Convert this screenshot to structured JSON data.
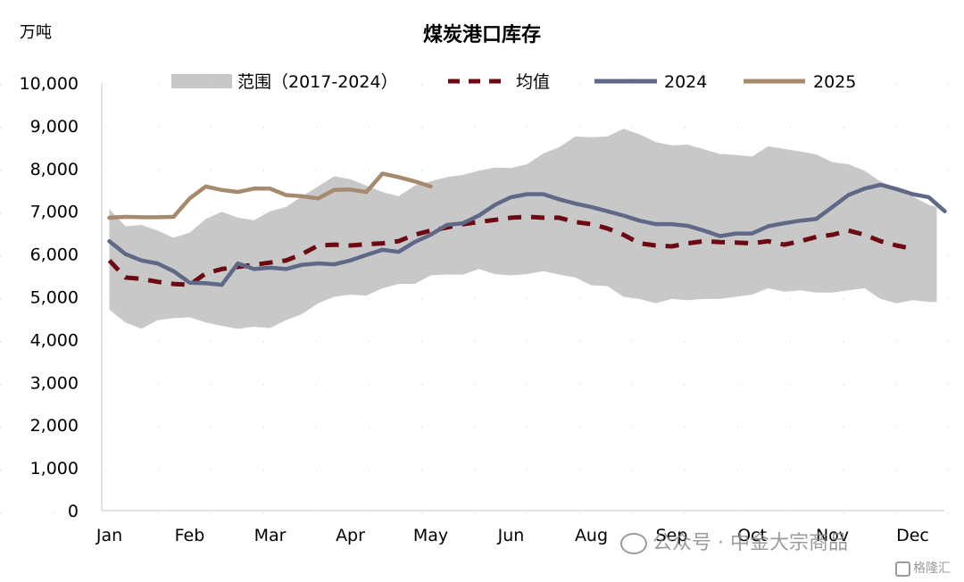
{
  "chart_data": {
    "type": "line",
    "title": "煤炭港口库存",
    "unit_label": "万吨",
    "ylim": [
      0,
      10000
    ],
    "yticks": [
      0,
      1000,
      2000,
      3000,
      4000,
      5000,
      6000,
      7000,
      8000,
      9000,
      10000
    ],
    "ytick_labels": [
      "0",
      "1,000",
      "2,000",
      "3,000",
      "4,000",
      "5,000",
      "6,000",
      "7,000",
      "8,000",
      "9,000",
      "10,000"
    ],
    "xlim": [
      1,
      52.5
    ],
    "month_labels": [
      "Jan",
      "Feb",
      "Mar",
      "Apr",
      "May",
      "Jun",
      "Aug",
      "Sep",
      "Oct",
      "Nov",
      "Dec"
    ],
    "month_positions": [
      1,
      6,
      11,
      16,
      21,
      26,
      31,
      36,
      41,
      46,
      51
    ],
    "legend": {
      "position": "top",
      "entries": [
        {
          "label": "范围（2017-2024）",
          "key": "range"
        },
        {
          "label": "均值",
          "key": "mean"
        },
        {
          "label": "2024",
          "key": "s2024"
        },
        {
          "label": "2025",
          "key": "s2025"
        }
      ]
    },
    "colors": {
      "range": "#c8c8c8",
      "mean": "#6b0a12",
      "s2024": "#5f6886",
      "s2025": "#a58a6e"
    },
    "range_upper": [
      [
        1,
        7050
      ],
      [
        2,
        6650
      ],
      [
        3,
        6680
      ],
      [
        4,
        6550
      ],
      [
        5,
        6380
      ],
      [
        6,
        6500
      ],
      [
        7,
        6820
      ],
      [
        8,
        6990
      ],
      [
        9,
        6850
      ],
      [
        10,
        6790
      ],
      [
        11,
        7000
      ],
      [
        12,
        7100
      ],
      [
        13,
        7350
      ],
      [
        14,
        7580
      ],
      [
        15,
        7820
      ],
      [
        16,
        7750
      ],
      [
        17,
        7600
      ],
      [
        18,
        7450
      ],
      [
        19,
        7350
      ],
      [
        20,
        7600
      ],
      [
        21,
        7700
      ],
      [
        22,
        7800
      ],
      [
        23,
        7850
      ],
      [
        24,
        7950
      ],
      [
        25,
        8020
      ],
      [
        26,
        8010
      ],
      [
        27,
        8100
      ],
      [
        28,
        8350
      ],
      [
        29,
        8500
      ],
      [
        30,
        8750
      ],
      [
        31,
        8730
      ],
      [
        32,
        8750
      ],
      [
        33,
        8930
      ],
      [
        34,
        8800
      ],
      [
        35,
        8620
      ],
      [
        36,
        8540
      ],
      [
        37,
        8560
      ],
      [
        38,
        8450
      ],
      [
        39,
        8340
      ],
      [
        40,
        8320
      ],
      [
        41,
        8280
      ],
      [
        42,
        8520
      ],
      [
        43,
        8460
      ],
      [
        44,
        8400
      ],
      [
        45,
        8330
      ],
      [
        46,
        8150
      ],
      [
        47,
        8100
      ],
      [
        48,
        7950
      ],
      [
        49,
        7700
      ],
      [
        50,
        7550
      ],
      [
        51,
        7350
      ],
      [
        52,
        7150
      ],
      [
        52.5,
        7100
      ]
    ],
    "range_lower": [
      [
        1,
        4700
      ],
      [
        2,
        4400
      ],
      [
        3,
        4250
      ],
      [
        4,
        4450
      ],
      [
        5,
        4500
      ],
      [
        6,
        4520
      ],
      [
        7,
        4400
      ],
      [
        8,
        4320
      ],
      [
        9,
        4250
      ],
      [
        10,
        4300
      ],
      [
        11,
        4270
      ],
      [
        12,
        4450
      ],
      [
        13,
        4600
      ],
      [
        14,
        4850
      ],
      [
        15,
        5000
      ],
      [
        16,
        5050
      ],
      [
        17,
        5030
      ],
      [
        18,
        5200
      ],
      [
        19,
        5300
      ],
      [
        20,
        5300
      ],
      [
        21,
        5500
      ],
      [
        22,
        5520
      ],
      [
        23,
        5520
      ],
      [
        24,
        5650
      ],
      [
        25,
        5530
      ],
      [
        26,
        5500
      ],
      [
        27,
        5530
      ],
      [
        28,
        5600
      ],
      [
        29,
        5520
      ],
      [
        30,
        5450
      ],
      [
        31,
        5270
      ],
      [
        32,
        5250
      ],
      [
        33,
        5000
      ],
      [
        34,
        4950
      ],
      [
        35,
        4850
      ],
      [
        36,
        4950
      ],
      [
        37,
        4920
      ],
      [
        38,
        4950
      ],
      [
        39,
        4950
      ],
      [
        40,
        5000
      ],
      [
        41,
        5050
      ],
      [
        42,
        5200
      ],
      [
        43,
        5120
      ],
      [
        44,
        5150
      ],
      [
        45,
        5100
      ],
      [
        46,
        5100
      ],
      [
        47,
        5150
      ],
      [
        48,
        5200
      ],
      [
        49,
        4950
      ],
      [
        50,
        4850
      ],
      [
        51,
        4920
      ],
      [
        52,
        4880
      ],
      [
        52.5,
        4880
      ]
    ],
    "series": [
      {
        "name": "均值",
        "key": "mean",
        "style": "dashed",
        "points": [
          [
            1,
            5850
          ],
          [
            2,
            5450
          ],
          [
            3,
            5420
          ],
          [
            4,
            5350
          ],
          [
            5,
            5300
          ],
          [
            6,
            5280
          ],
          [
            7,
            5550
          ],
          [
            8,
            5650
          ],
          [
            9,
            5700
          ],
          [
            10,
            5750
          ],
          [
            11,
            5800
          ],
          [
            12,
            5850
          ],
          [
            13,
            6000
          ],
          [
            14,
            6200
          ],
          [
            15,
            6220
          ],
          [
            16,
            6200
          ],
          [
            17,
            6230
          ],
          [
            18,
            6250
          ],
          [
            19,
            6300
          ],
          [
            20,
            6450
          ],
          [
            21,
            6550
          ],
          [
            22,
            6620
          ],
          [
            23,
            6700
          ],
          [
            24,
            6750
          ],
          [
            25,
            6800
          ],
          [
            26,
            6850
          ],
          [
            27,
            6870
          ],
          [
            28,
            6850
          ],
          [
            29,
            6850
          ],
          [
            30,
            6750
          ],
          [
            31,
            6700
          ],
          [
            32,
            6600
          ],
          [
            33,
            6450
          ],
          [
            34,
            6250
          ],
          [
            35,
            6200
          ],
          [
            36,
            6180
          ],
          [
            37,
            6250
          ],
          [
            38,
            6300
          ],
          [
            39,
            6280
          ],
          [
            40,
            6270
          ],
          [
            41,
            6250
          ],
          [
            42,
            6300
          ],
          [
            43,
            6220
          ],
          [
            44,
            6300
          ],
          [
            45,
            6400
          ],
          [
            46,
            6450
          ],
          [
            47,
            6550
          ],
          [
            48,
            6450
          ],
          [
            49,
            6300
          ],
          [
            50,
            6200
          ],
          [
            51,
            6120
          ]
        ]
      },
      {
        "name": "2024",
        "key": "s2024",
        "style": "solid",
        "points": [
          [
            1,
            6300
          ],
          [
            2,
            6000
          ],
          [
            3,
            5850
          ],
          [
            4,
            5780
          ],
          [
            5,
            5600
          ],
          [
            6,
            5330
          ],
          [
            7,
            5320
          ],
          [
            8,
            5280
          ],
          [
            9,
            5780
          ],
          [
            10,
            5650
          ],
          [
            11,
            5680
          ],
          [
            12,
            5650
          ],
          [
            13,
            5750
          ],
          [
            14,
            5780
          ],
          [
            15,
            5760
          ],
          [
            16,
            5850
          ],
          [
            17,
            5980
          ],
          [
            18,
            6100
          ],
          [
            19,
            6050
          ],
          [
            20,
            6280
          ],
          [
            21,
            6450
          ],
          [
            22,
            6680
          ],
          [
            23,
            6720
          ],
          [
            24,
            6900
          ],
          [
            25,
            7150
          ],
          [
            26,
            7330
          ],
          [
            27,
            7400
          ],
          [
            28,
            7400
          ],
          [
            29,
            7280
          ],
          [
            30,
            7180
          ],
          [
            31,
            7100
          ],
          [
            32,
            7000
          ],
          [
            33,
            6900
          ],
          [
            34,
            6780
          ],
          [
            35,
            6700
          ],
          [
            36,
            6700
          ],
          [
            37,
            6660
          ],
          [
            38,
            6550
          ],
          [
            39,
            6420
          ],
          [
            40,
            6480
          ],
          [
            41,
            6480
          ],
          [
            42,
            6650
          ],
          [
            43,
            6720
          ],
          [
            44,
            6780
          ],
          [
            45,
            6820
          ],
          [
            46,
            7100
          ],
          [
            47,
            7380
          ],
          [
            48,
            7530
          ],
          [
            49,
            7620
          ],
          [
            50,
            7520
          ],
          [
            51,
            7400
          ],
          [
            52,
            7330
          ],
          [
            53,
            7000
          ]
        ]
      },
      {
        "name": "2025",
        "key": "s2025",
        "style": "solid",
        "points": [
          [
            1,
            6850
          ],
          [
            2,
            6870
          ],
          [
            3,
            6860
          ],
          [
            4,
            6860
          ],
          [
            5,
            6870
          ],
          [
            6,
            7300
          ],
          [
            7,
            7580
          ],
          [
            8,
            7500
          ],
          [
            9,
            7450
          ],
          [
            10,
            7530
          ],
          [
            11,
            7530
          ],
          [
            12,
            7380
          ],
          [
            13,
            7350
          ],
          [
            14,
            7300
          ],
          [
            15,
            7500
          ],
          [
            16,
            7510
          ],
          [
            17,
            7450
          ],
          [
            18,
            7880
          ],
          [
            19,
            7800
          ],
          [
            20,
            7700
          ],
          [
            21,
            7580
          ]
        ]
      }
    ]
  },
  "watermark": {
    "text1": "公众号 · 中金大宗商品",
    "text2": "格隆汇"
  }
}
